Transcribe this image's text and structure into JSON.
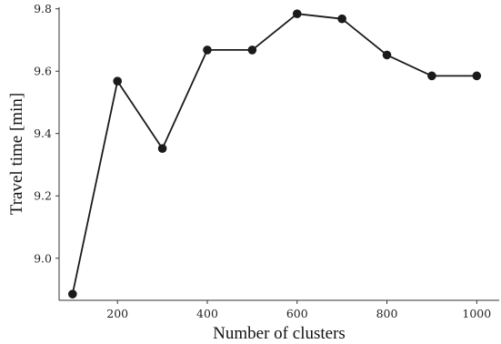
{
  "chart_data": {
    "type": "line",
    "title": "",
    "xlabel": "Number of clusters",
    "ylabel": "Travel time [min]",
    "xlim": [
      70,
      1050
    ],
    "ylim": [
      8.865,
      9.805
    ],
    "xticks": [
      200,
      400,
      600,
      800,
      1000
    ],
    "xtick_labels": [
      "200",
      "400",
      "600",
      "800",
      "1000"
    ],
    "yticks": [
      9.0,
      9.2,
      9.4,
      9.6,
      9.8
    ],
    "ytick_labels": [
      "9.0",
      "9.2",
      "9.4",
      "9.6",
      "9.8"
    ],
    "grid": false,
    "legend": "none",
    "series": [
      {
        "color": "#1a1a1a",
        "marker": "circle",
        "x": [
          100,
          200,
          300,
          400,
          500,
          600,
          700,
          800,
          900,
          1000
        ],
        "y": [
          8.885,
          9.568,
          9.352,
          9.668,
          9.668,
          9.784,
          9.768,
          9.652,
          9.585,
          9.585
        ]
      }
    ]
  }
}
